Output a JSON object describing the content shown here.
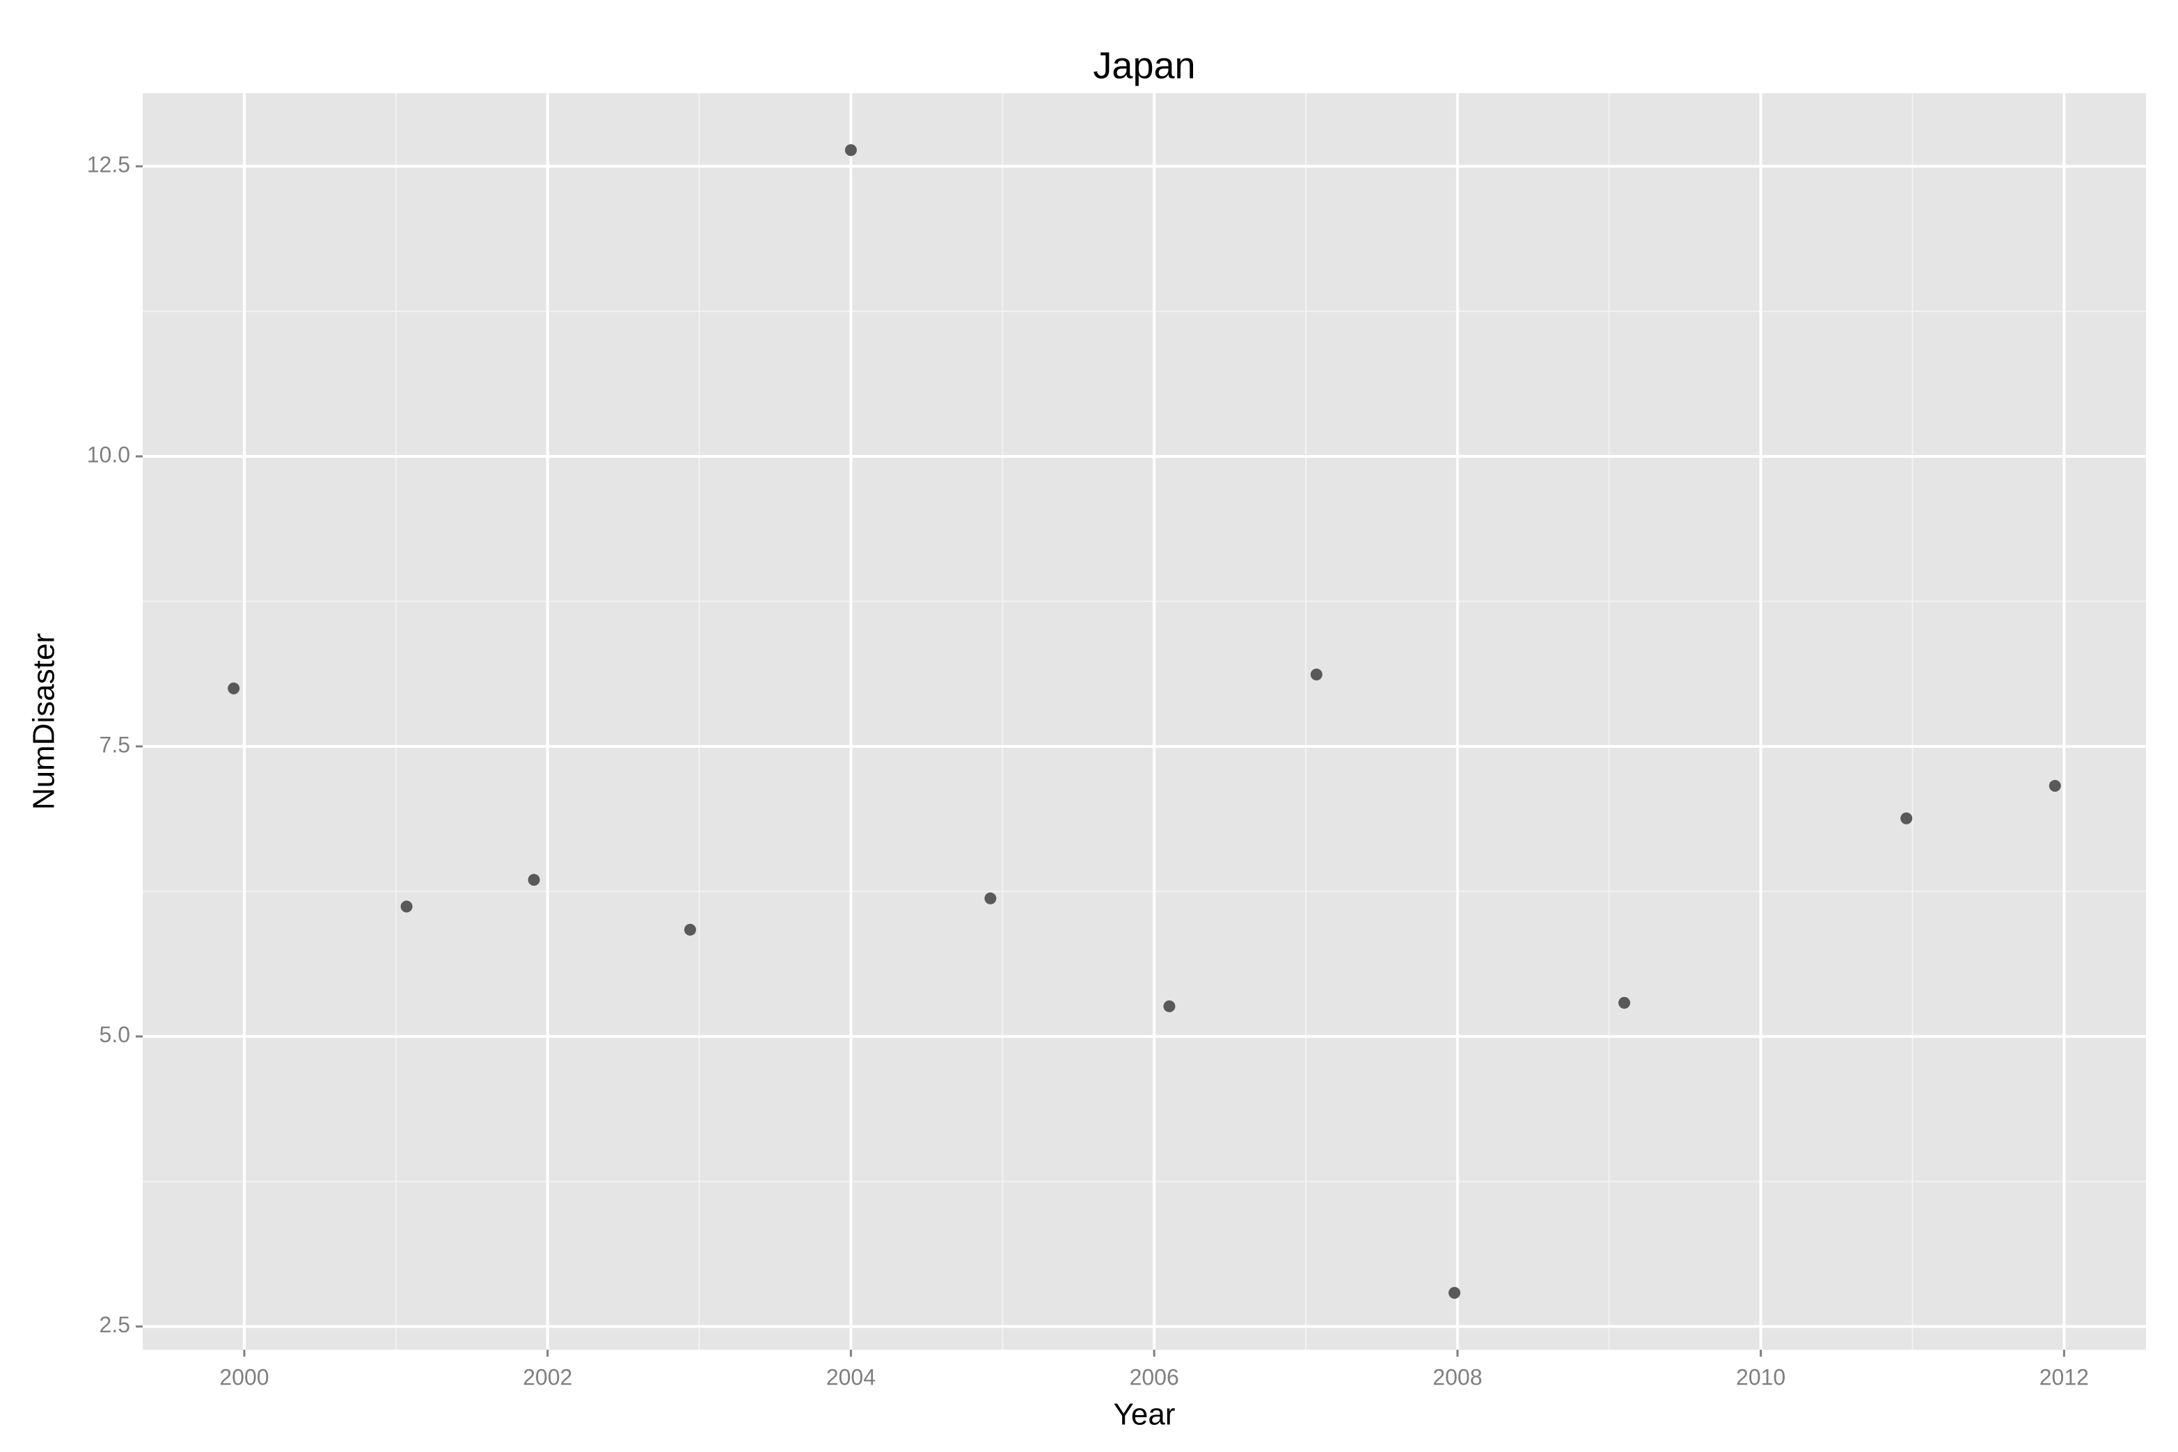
{
  "chart_data": {
    "type": "scatter",
    "title": "Japan",
    "x_label": "Year",
    "y_label": "NumDisaster",
    "x": [
      1999.93,
      2001.07,
      2001.91,
      2002.94,
      2004.0,
      2004.92,
      2006.1,
      2007.07,
      2007.98,
      2009.1,
      2010.96,
      2011.94
    ],
    "values": [
      8.0,
      6.12,
      6.35,
      5.92,
      12.64,
      6.19,
      5.26,
      8.12,
      2.79,
      5.29,
      6.88,
      7.16
    ],
    "color": "#595959",
    "xlim": [
      1999.33,
      2012.54
    ],
    "xticks": [
      2000,
      2002,
      2004,
      2006,
      2008,
      2010,
      2012
    ],
    "ylim": [
      2.3,
      13.13
    ],
    "yticks": [
      2.5,
      {
        "value": 5,
        "label": "5.0"
      },
      7.5,
      {
        "value": 10,
        "label": "10.0"
      },
      12.5
    ],
    "grid": true
  }
}
